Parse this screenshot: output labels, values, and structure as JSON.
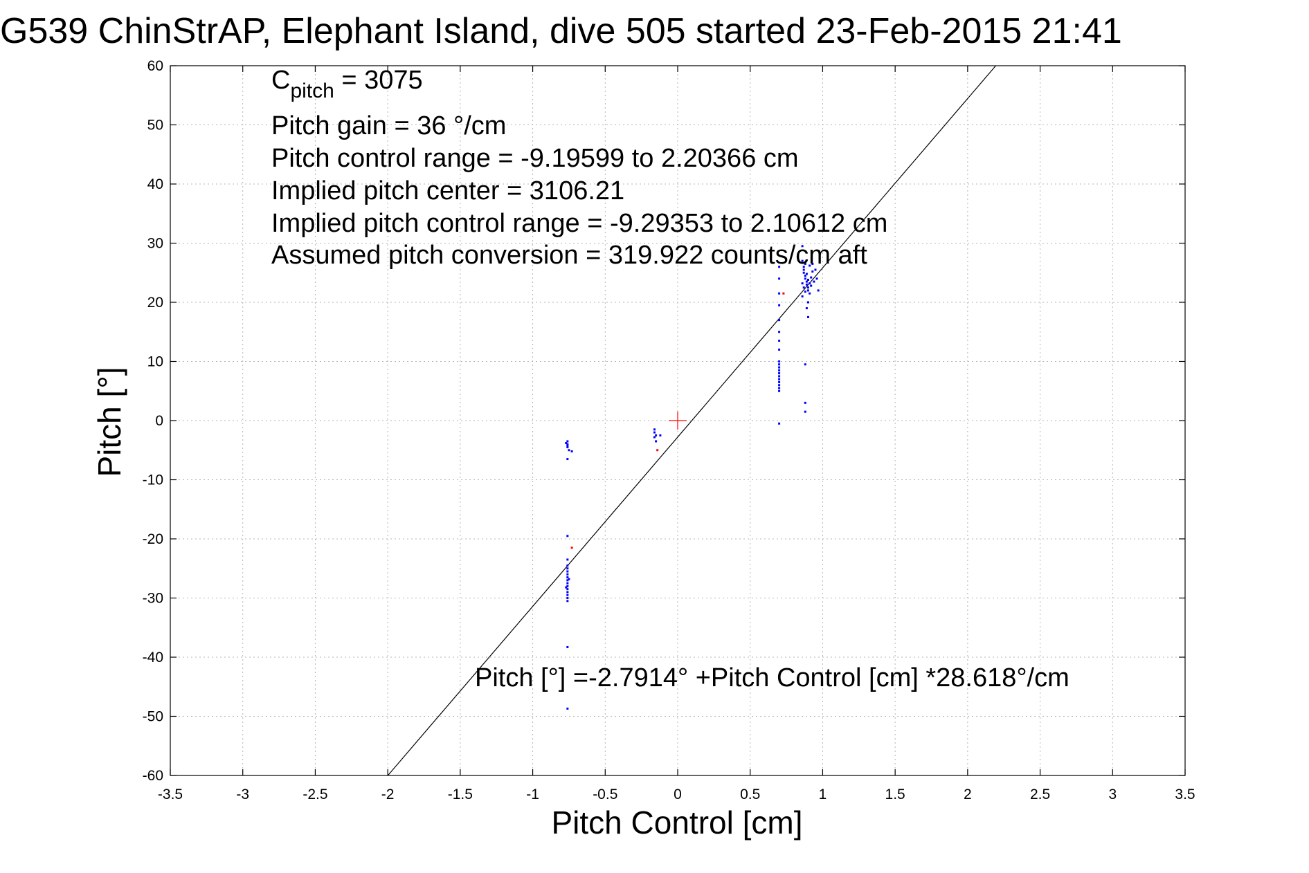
{
  "chart_data": {
    "type": "scatter",
    "title": "G539 ChinStrAP, Elephant Island, dive 505 started 23-Feb-2015 21:41",
    "xlabel": "Pitch Control [cm]",
    "ylabel": "Pitch [°]",
    "xlim": [
      -3.5,
      3.5
    ],
    "ylim": [
      -60,
      60
    ],
    "xticks": [
      -3.5,
      -3,
      -2.5,
      -2,
      -1.5,
      -1,
      -0.5,
      0,
      0.5,
      1,
      1.5,
      2,
      2.5,
      3,
      3.5
    ],
    "xtick_labels": [
      "-3.5",
      "-3",
      "-2.5",
      "-2",
      "-1.5",
      "-1",
      "-0.5",
      "0",
      "0.5",
      "1",
      "1.5",
      "2",
      "2.5",
      "3",
      "3.5"
    ],
    "yticks": [
      -60,
      -50,
      -40,
      -30,
      -20,
      -10,
      0,
      10,
      20,
      30,
      40,
      50,
      60
    ],
    "ytick_labels": [
      "-60",
      "-50",
      "-40",
      "-30",
      "-20",
      "-10",
      "0",
      "10",
      "20",
      "30",
      "40",
      "50",
      "60"
    ],
    "grid": true,
    "annotations": {
      "cpitch_main": "C",
      "cpitch_sub": "pitch",
      "cpitch_value": " = 3075",
      "pitch_gain": "Pitch gain = 36 °/cm",
      "control_range": "Pitch control range = -9.19599 to 2.20366 cm",
      "implied_center": "Implied pitch center = 3106.21",
      "implied_range": "Implied pitch control range = -9.29353 to 2.10612 cm",
      "conversion": "Assumed pitch conversion = 319.922 counts/cm aft",
      "fit_equation": "Pitch [°] =-2.7914° +Pitch Control [cm] *28.618°/cm"
    },
    "fit": {
      "intercept": -2.7914,
      "slope": 28.618
    },
    "center_marker": {
      "x": 0,
      "y": 0,
      "color": "#ff0000"
    },
    "series": [
      {
        "color": "#0000ff",
        "points": [
          [
            -0.76,
            -3.5
          ],
          [
            -0.76,
            -4.0
          ],
          [
            -0.76,
            -4.5
          ],
          [
            -0.75,
            -5.0
          ],
          [
            -0.77,
            -3.8
          ],
          [
            -0.76,
            -6.5
          ],
          [
            -0.73,
            -5.2
          ],
          [
            -0.76,
            -4.2
          ],
          [
            -0.76,
            -19.5
          ],
          [
            -0.76,
            -23.5
          ],
          [
            -0.76,
            -24.5
          ],
          [
            -0.76,
            -25.0
          ],
          [
            -0.76,
            -25.5
          ],
          [
            -0.76,
            -26.0
          ],
          [
            -0.76,
            -26.5
          ],
          [
            -0.76,
            -27.0
          ],
          [
            -0.76,
            -27.5
          ],
          [
            -0.76,
            -28.0
          ],
          [
            -0.76,
            -28.5
          ],
          [
            -0.76,
            -29.0
          ],
          [
            -0.76,
            -29.5
          ],
          [
            -0.76,
            -30.0
          ],
          [
            -0.76,
            -30.5
          ],
          [
            -0.75,
            -26.8
          ],
          [
            -0.77,
            -28.2
          ],
          [
            -0.76,
            -38.3
          ],
          [
            -0.76,
            -48.7
          ],
          [
            -0.16,
            -1.5
          ],
          [
            -0.16,
            -2.0
          ],
          [
            -0.15,
            -2.5
          ],
          [
            -0.16,
            -2.8
          ],
          [
            -0.12,
            -2.5
          ],
          [
            -0.15,
            -3.5
          ],
          [
            0.7,
            26.0
          ],
          [
            0.7,
            24.0
          ],
          [
            0.7,
            21.5
          ],
          [
            0.7,
            19.5
          ],
          [
            0.7,
            17.0
          ],
          [
            0.7,
            15.0
          ],
          [
            0.7,
            13.5
          ],
          [
            0.7,
            12.0
          ],
          [
            0.7,
            10.0
          ],
          [
            0.7,
            9.5
          ],
          [
            0.7,
            9.0
          ],
          [
            0.7,
            8.5
          ],
          [
            0.7,
            8.0
          ],
          [
            0.7,
            7.5
          ],
          [
            0.7,
            7.0
          ],
          [
            0.7,
            6.5
          ],
          [
            0.7,
            6.0
          ],
          [
            0.7,
            5.5
          ],
          [
            0.7,
            5.0
          ],
          [
            0.7,
            -0.5
          ],
          [
            0.86,
            29.5
          ],
          [
            0.86,
            27.0
          ],
          [
            0.87,
            26.0
          ],
          [
            0.87,
            25.0
          ],
          [
            0.88,
            24.5
          ],
          [
            0.88,
            24.0
          ],
          [
            0.89,
            23.5
          ],
          [
            0.89,
            23.0
          ],
          [
            0.9,
            22.5
          ],
          [
            0.9,
            22.0
          ],
          [
            0.91,
            21.5
          ],
          [
            0.86,
            21.0
          ],
          [
            0.87,
            25.5
          ],
          [
            0.88,
            26.5
          ],
          [
            0.89,
            24.8
          ],
          [
            0.9,
            23.8
          ],
          [
            0.91,
            23.2
          ],
          [
            0.92,
            24.2
          ],
          [
            0.93,
            25.2
          ],
          [
            0.94,
            23.5
          ],
          [
            0.92,
            22.8
          ],
          [
            0.91,
            26.2
          ],
          [
            0.93,
            26.5
          ],
          [
            0.86,
            23.2
          ],
          [
            0.87,
            22.5
          ],
          [
            0.88,
            21.8
          ],
          [
            0.96,
            24.0
          ],
          [
            0.97,
            22.0
          ],
          [
            0.95,
            25.5
          ],
          [
            0.9,
            20.0
          ],
          [
            0.89,
            19.0
          ],
          [
            0.9,
            17.5
          ],
          [
            0.88,
            9.5
          ],
          [
            0.88,
            3.0
          ],
          [
            0.88,
            1.5
          ]
        ]
      },
      {
        "color": "#ff0000",
        "points": [
          [
            0.73,
            21.5
          ],
          [
            -0.73,
            -21.5
          ],
          [
            -0.14,
            -5.0
          ]
        ]
      }
    ]
  }
}
